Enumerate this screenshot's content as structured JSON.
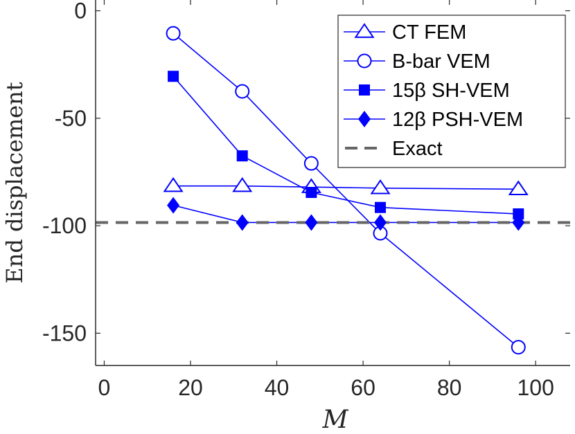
{
  "chart_data": {
    "type": "line",
    "title": "",
    "xlabel": "M",
    "ylabel": "End displacement",
    "xlim": [
      -2,
      108
    ],
    "ylim": [
      -165,
      5
    ],
    "xticks": [
      0,
      20,
      40,
      60,
      80,
      100
    ],
    "yticks": [
      0,
      -50,
      -100,
      -150
    ],
    "xtick_labels": [
      "0",
      "20",
      "40",
      "60",
      "80",
      "100"
    ],
    "ytick_labels": [
      "0",
      "-50",
      "-100",
      "-150"
    ],
    "grid": false,
    "legend_position": "top-right",
    "x": [
      16,
      32,
      48,
      64,
      96
    ],
    "series": [
      {
        "name": "CT FEM",
        "marker": "triangle-open",
        "color": "#0000ff",
        "values": [
          -81.5,
          -81.5,
          -82,
          -82.5,
          -83
        ]
      },
      {
        "name": "B-bar VEM",
        "marker": "circle-open",
        "color": "#0000ff",
        "values": [
          -10.5,
          -37.5,
          -71,
          -103.5,
          -156.5
        ]
      },
      {
        "name": "15β SH-VEM",
        "marker": "square-filled",
        "color": "#0000ff",
        "values": [
          -30.5,
          -67.5,
          -84.5,
          -91.5,
          -94.5
        ]
      },
      {
        "name": "12β PSH-VEM",
        "marker": "diamond-filled",
        "color": "#0000ff",
        "values": [
          -90.5,
          -98.5,
          -98.5,
          -98.5,
          -98.5
        ]
      }
    ],
    "reference": {
      "name": "Exact",
      "value": -98.5,
      "color": "#666666",
      "style": "dashed"
    }
  }
}
